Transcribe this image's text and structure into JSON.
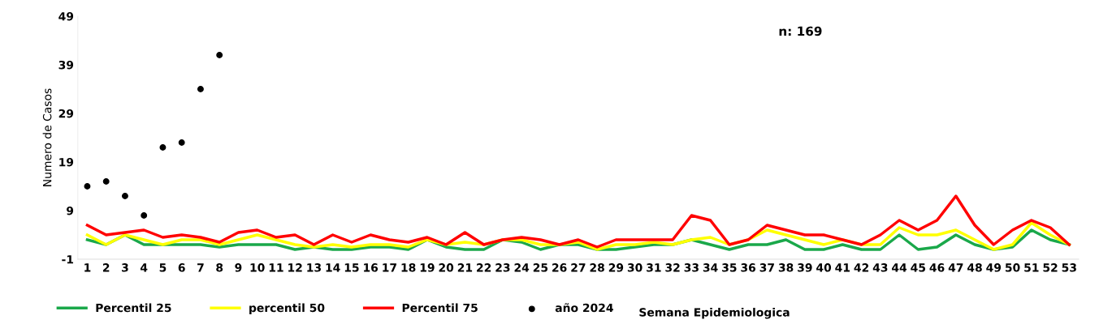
{
  "chart_data": {
    "type": "line",
    "ylabel": "Numero de Casos",
    "xlabel": "Semana Epidemiologica",
    "annotations": [
      "n: 169"
    ],
    "categories": [
      "1",
      "2",
      "3",
      "4",
      "5",
      "6",
      "7",
      "8",
      "9",
      "10",
      "11",
      "12",
      "13",
      "14",
      "15",
      "16",
      "17",
      "18",
      "19",
      "20",
      "21",
      "22",
      "23",
      "24",
      "25",
      "26",
      "27",
      "28",
      "29",
      "30",
      "31",
      "32",
      "33",
      "34",
      "35",
      "36",
      "37",
      "38",
      "39",
      "40",
      "41",
      "42",
      "43",
      "44",
      "45",
      "46",
      "47",
      "48",
      "49",
      "50",
      "51",
      "52",
      "53"
    ],
    "ylim": [
      -1,
      49
    ],
    "yticks": [
      -1,
      9,
      19,
      29,
      39,
      49
    ],
    "grid": false,
    "legend": "bottom left",
    "marker": "none",
    "series": [
      {
        "name": "Percentil 25",
        "color": "#1aa84a",
        "values": [
          3,
          2,
          4,
          2,
          2,
          2,
          2,
          1.5,
          2,
          2,
          2,
          1,
          1.5,
          1,
          1,
          1.5,
          1.5,
          1,
          3,
          1.5,
          1,
          1,
          3,
          2.5,
          1,
          2,
          2,
          1,
          1,
          1.5,
          2,
          2,
          3,
          2,
          1,
          2,
          2,
          3,
          1,
          1,
          2,
          1,
          1,
          4,
          1,
          1.5,
          4,
          2,
          1,
          1.5,
          5,
          3,
          2
        ]
      },
      {
        "name": "percentil 50",
        "color": "#ffff00",
        "values": [
          4,
          2,
          4,
          3,
          2,
          3,
          3,
          2,
          3,
          4,
          3,
          2,
          1.5,
          2,
          1.5,
          2,
          2,
          1.5,
          3,
          2,
          2.5,
          2,
          3,
          3,
          2,
          2,
          2.5,
          1,
          2,
          2,
          2.5,
          2,
          3,
          3.5,
          2,
          3,
          5,
          4,
          3,
          2,
          3,
          2,
          2,
          5.5,
          4,
          4,
          5,
          3,
          1,
          2,
          6.5,
          4,
          2
        ]
      },
      {
        "name": "Percentil 75",
        "color": "#ff0000",
        "values": [
          6,
          4,
          4.5,
          5,
          3.5,
          4,
          3.5,
          2.5,
          4.5,
          5,
          3.5,
          4,
          2,
          4,
          2.5,
          4,
          3,
          2.5,
          3.5,
          2,
          4.5,
          2,
          3,
          3.5,
          3,
          2,
          3,
          1.5,
          3,
          3,
          3,
          3,
          8,
          7,
          2,
          3,
          6,
          5,
          4,
          4,
          3,
          2,
          4,
          7,
          5,
          7,
          12,
          6,
          2,
          5,
          7,
          5.5,
          2
        ]
      },
      {
        "name": "año 2024",
        "type": "scatter",
        "marker": "circle",
        "color": "#000000",
        "values": [
          14,
          15,
          12,
          8,
          22,
          23,
          34,
          41,
          null,
          null,
          null,
          null,
          null,
          null,
          null,
          null,
          null,
          null,
          null,
          null,
          null,
          null,
          null,
          null,
          null,
          null,
          null,
          null,
          null,
          null,
          null,
          null,
          null,
          null,
          null,
          null,
          null,
          null,
          null,
          null,
          null,
          null,
          null,
          null,
          null,
          null,
          null,
          null,
          null,
          null,
          null,
          null,
          null
        ]
      }
    ]
  }
}
